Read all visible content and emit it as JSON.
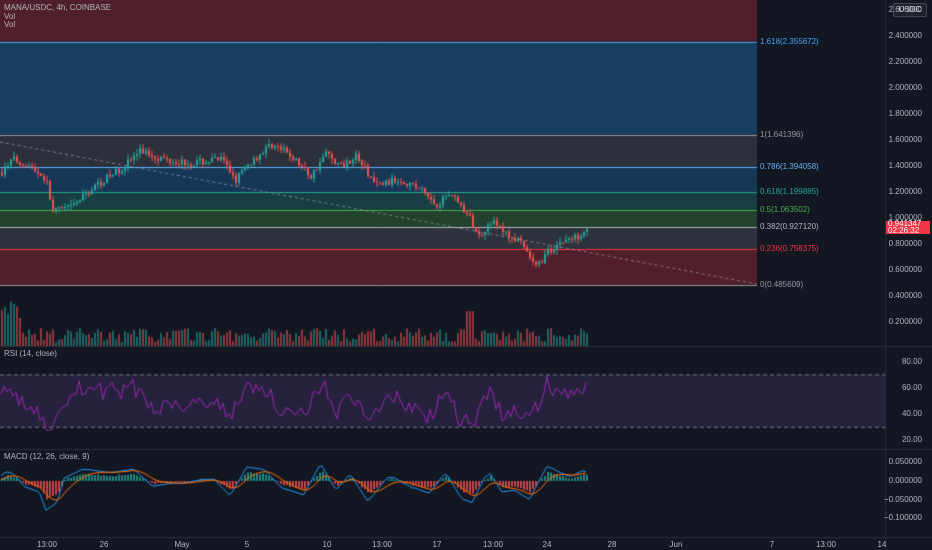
{
  "header": {
    "symbol": "MANA/USDC, 4h, COINBASE",
    "vol1": "Vol",
    "vol2": "Vol",
    "rsi": "RSI (14, close)",
    "macd": "MACD (12, 26, close, 9)"
  },
  "currency_badge": "USDC",
  "price_tag": {
    "price": "0.941347",
    "countdown": "02:26:32"
  },
  "fib_levels": [
    {
      "label": "1.618(2.355672)",
      "value": 2.355672,
      "color": "#42a5f5"
    },
    {
      "label": "1(1.641396)",
      "value": 1.641396,
      "color": "#9598a1"
    },
    {
      "label": "0.786(1.394058)",
      "value": 1.394058,
      "color": "#64b5f6"
    },
    {
      "label": "0.618(1.199885)",
      "value": 1.199885,
      "color": "#26a69a"
    },
    {
      "label": "0.5(1.063502)",
      "value": 1.063502,
      "color": "#4caf50"
    },
    {
      "label": "0.382(0.927120)",
      "value": 0.92712,
      "color": "#b2b5be"
    },
    {
      "label": "0.236(0.758375)",
      "value": 0.758375,
      "color": "#f23645"
    },
    {
      "label": "0(0.485609)",
      "value": 0.485609,
      "color": "#9598a1"
    }
  ],
  "price_axis": [
    "2.600000",
    "2.400000",
    "2.200000",
    "2.000000",
    "1.800000",
    "1.600000",
    "1.400000",
    "1.200000",
    "1.000000",
    "0.800000",
    "0.600000",
    "0.400000",
    "0.200000"
  ],
  "rsi_axis": [
    "80.00",
    "60.00",
    "40.00",
    "20.00"
  ],
  "macd_axis": [
    "0.050000",
    "0.000000",
    "−0.050000",
    "−0.100000"
  ],
  "time_axis": [
    "13:00",
    "26",
    "May",
    "5",
    "10",
    "13:00",
    "17",
    "13:00",
    "24",
    "28",
    "Jun",
    "7",
    "13:00",
    "14"
  ],
  "colors": {
    "up": "#26a69a",
    "down": "#ef5350",
    "rsi": "#9c27b0",
    "macd": "#2196f3",
    "signal": "#ff6d00"
  }
}
